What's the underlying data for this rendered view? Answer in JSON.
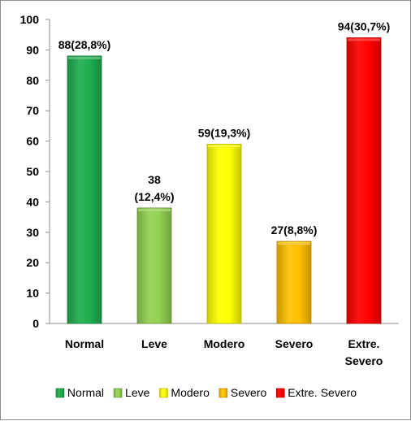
{
  "chart_data": {
    "type": "bar",
    "title": "",
    "xlabel": "",
    "ylabel": "",
    "ylim": [
      0,
      100
    ],
    "yticks": [
      0,
      10,
      20,
      30,
      40,
      50,
      60,
      70,
      80,
      90,
      100
    ],
    "grid": false,
    "legend_position": "bottom",
    "categories": [
      {
        "label": [
          "Normal"
        ],
        "legend": "Normal",
        "value": 88,
        "data_label": [
          "88(28,8%)"
        ],
        "color": "#1fae4f"
      },
      {
        "label": [
          "Leve"
        ],
        "legend": "Leve",
        "value": 38,
        "data_label": [
          "38",
          "(12,4%)"
        ],
        "color": "#92d050"
      },
      {
        "label": [
          "Modero"
        ],
        "legend": "Modero",
        "value": 59,
        "data_label": [
          "59(19,3%)"
        ],
        "color": "#ffff00"
      },
      {
        "label": [
          "Severo"
        ],
        "legend": "Severo",
        "value": 27,
        "data_label": [
          "27(8,8%)"
        ],
        "color": "#ffc000"
      },
      {
        "label": [
          "Extre.",
          "Severo"
        ],
        "legend": "Extre. Severo",
        "value": 94,
        "data_label": [
          "94(30,7%)"
        ],
        "color": "#ff0000"
      }
    ]
  }
}
